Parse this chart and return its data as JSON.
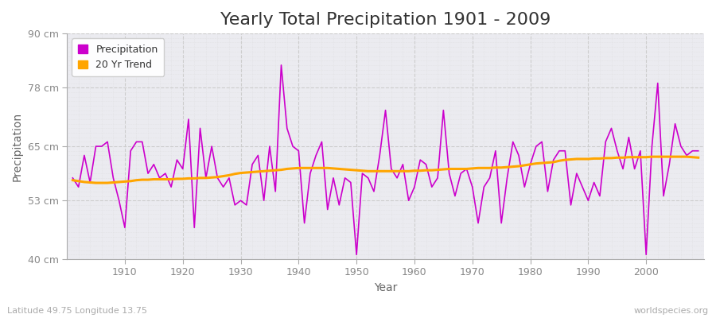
{
  "title": "Yearly Total Precipitation 1901 - 2009",
  "xlabel": "Year",
  "ylabel": "Precipitation",
  "subtitle": "Latitude 49.75 Longitude 13.75",
  "watermark": "worldspecies.org",
  "years": [
    1901,
    1902,
    1903,
    1904,
    1905,
    1906,
    1907,
    1908,
    1909,
    1910,
    1911,
    1912,
    1913,
    1914,
    1915,
    1916,
    1917,
    1918,
    1919,
    1920,
    1921,
    1922,
    1923,
    1924,
    1925,
    1926,
    1927,
    1928,
    1929,
    1930,
    1931,
    1932,
    1933,
    1934,
    1935,
    1936,
    1937,
    1938,
    1939,
    1940,
    1941,
    1942,
    1943,
    1944,
    1945,
    1946,
    1947,
    1948,
    1949,
    1950,
    1951,
    1952,
    1953,
    1954,
    1955,
    1956,
    1957,
    1958,
    1959,
    1960,
    1961,
    1962,
    1963,
    1964,
    1965,
    1966,
    1967,
    1968,
    1969,
    1970,
    1971,
    1972,
    1973,
    1974,
    1975,
    1976,
    1977,
    1978,
    1979,
    1980,
    1981,
    1982,
    1983,
    1984,
    1985,
    1986,
    1987,
    1988,
    1989,
    1990,
    1991,
    1992,
    1993,
    1994,
    1995,
    1996,
    1997,
    1998,
    1999,
    2000,
    2001,
    2002,
    2003,
    2004,
    2005,
    2006,
    2007,
    2008,
    2009
  ],
  "precipitation": [
    58,
    56,
    63,
    57,
    65,
    65,
    66,
    58,
    53,
    47,
    64,
    66,
    66,
    59,
    61,
    58,
    59,
    56,
    62,
    60,
    71,
    47,
    69,
    58,
    65,
    58,
    56,
    58,
    52,
    53,
    52,
    61,
    63,
    53,
    65,
    55,
    83,
    69,
    65,
    64,
    48,
    59,
    63,
    66,
    51,
    58,
    52,
    58,
    57,
    41,
    59,
    58,
    55,
    63,
    73,
    60,
    58,
    61,
    53,
    56,
    62,
    61,
    56,
    58,
    73,
    59,
    54,
    59,
    60,
    56,
    48,
    56,
    58,
    64,
    48,
    58,
    66,
    63,
    56,
    61,
    65,
    66,
    55,
    62,
    64,
    64,
    52,
    59,
    56,
    53,
    57,
    54,
    66,
    69,
    64,
    60,
    67,
    60,
    64,
    41,
    65,
    79,
    54,
    61,
    70,
    65,
    63,
    64,
    64
  ],
  "trend": [
    57.5,
    57.3,
    57.1,
    57.0,
    56.9,
    56.9,
    56.9,
    57.0,
    57.1,
    57.2,
    57.3,
    57.5,
    57.6,
    57.6,
    57.7,
    57.7,
    57.7,
    57.7,
    57.8,
    57.8,
    57.9,
    57.9,
    58.0,
    58.0,
    58.1,
    58.2,
    58.4,
    58.6,
    58.9,
    59.1,
    59.2,
    59.3,
    59.4,
    59.5,
    59.6,
    59.7,
    59.8,
    60.0,
    60.1,
    60.2,
    60.2,
    60.2,
    60.2,
    60.2,
    60.2,
    60.1,
    60.0,
    59.9,
    59.8,
    59.7,
    59.6,
    59.5,
    59.5,
    59.5,
    59.5,
    59.5,
    59.5,
    59.5,
    59.5,
    59.6,
    59.6,
    59.7,
    59.7,
    59.8,
    59.9,
    60.0,
    60.0,
    60.0,
    60.0,
    60.1,
    60.2,
    60.2,
    60.2,
    60.3,
    60.3,
    60.4,
    60.5,
    60.6,
    60.8,
    61.0,
    61.2,
    61.3,
    61.4,
    61.5,
    61.8,
    62.0,
    62.1,
    62.2,
    62.2,
    62.2,
    62.3,
    62.3,
    62.4,
    62.4,
    62.5,
    62.5,
    62.6,
    62.6,
    62.6,
    62.6,
    62.7,
    62.7,
    62.7,
    62.7,
    62.7,
    62.7,
    62.7,
    62.6,
    62.5
  ],
  "precip_color": "#CC00CC",
  "trend_color": "#FFA500",
  "bg_color": "#FFFFFF",
  "plot_bg_color": "#EBEBF0",
  "grid_color_major": "#CCCCCC",
  "grid_color_minor": "#DDDDDD",
  "ylim": [
    40,
    90
  ],
  "ytick_labels": [
    "40 cm",
    "53 cm",
    "65 cm",
    "78 cm",
    "90 cm"
  ],
  "ytick_values": [
    40,
    53,
    65,
    78,
    90
  ],
  "xtick_values": [
    1910,
    1920,
    1930,
    1940,
    1950,
    1960,
    1970,
    1980,
    1990,
    2000
  ],
  "title_fontsize": 16,
  "axis_label_fontsize": 10,
  "tick_fontsize": 9,
  "legend_fontsize": 9,
  "xlim_left": 1900,
  "xlim_right": 2010
}
